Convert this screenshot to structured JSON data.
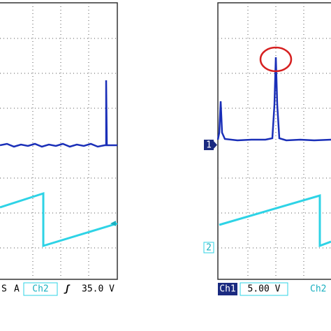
{
  "left_scope": {
    "status": {
      "partial_label": "S",
      "trigger_mode": "A",
      "channel": "Ch2",
      "slope": "ʃ",
      "level": "35.0 V"
    }
  },
  "right_scope": {
    "markers": [
      "1",
      "2"
    ],
    "status": {
      "channel": "Ch1",
      "scale": "5.00 V",
      "channel_2": "Ch2"
    }
  }
}
